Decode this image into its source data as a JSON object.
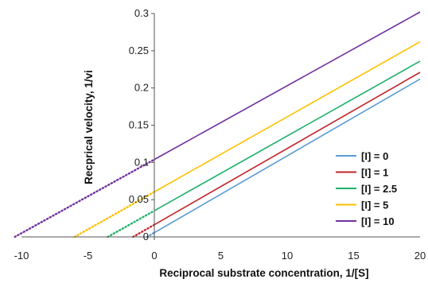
{
  "chart_data": {
    "type": "line",
    "title": "",
    "xlabel": "Reciprocal substrate concentration, 1/[S]",
    "ylabel": "Recprical velocity, 1/vi",
    "xlim": [
      -10,
      20
    ],
    "ylim": [
      0,
      0.3
    ],
    "x_ticks": [
      -10,
      -5,
      0,
      5,
      10,
      15,
      20
    ],
    "x_tick_labels": [
      "-10",
      "-5",
      "0",
      "5",
      "10",
      "15",
      "20"
    ],
    "y_ticks": [
      0,
      0.05,
      0.1,
      0.15,
      0.2,
      0.25,
      0.3
    ],
    "y_tick_labels": [
      "0",
      "0.05",
      "0.1",
      "0.15",
      "0.2",
      "0.25",
      "0.3"
    ],
    "grid": false,
    "legend_position": "right",
    "line_style_note": "solid for 1/[S] >= 0, dotted extrapolation for 1/[S] < 0",
    "series": [
      {
        "name": "[I] = 0",
        "color": "#5b9bd5",
        "x": [
          -0.55,
          20
        ],
        "y": [
          0,
          0.212
        ],
        "x_extrap_start": -0.55
      },
      {
        "name": "[I] = 1",
        "color": "#c0252b",
        "x": [
          -1.6,
          20
        ],
        "y": [
          0,
          0.221
        ],
        "x_extrap_start": -1.6
      },
      {
        "name": "[I] = 2.5",
        "color": "#1fb06a",
        "x": [
          -3.5,
          20
        ],
        "y": [
          0,
          0.236
        ],
        "x_extrap_start": -3.5
      },
      {
        "name": "[I] = 5",
        "color": "#ffc000",
        "x": [
          -6.0,
          20
        ],
        "y": [
          0,
          0.262
        ],
        "x_extrap_start": -6.0
      },
      {
        "name": "[I] = 10",
        "color": "#7030a0",
        "x": [
          -10.5,
          20
        ],
        "y": [
          0,
          0.302
        ],
        "x_extrap_start": -10.5
      }
    ]
  }
}
